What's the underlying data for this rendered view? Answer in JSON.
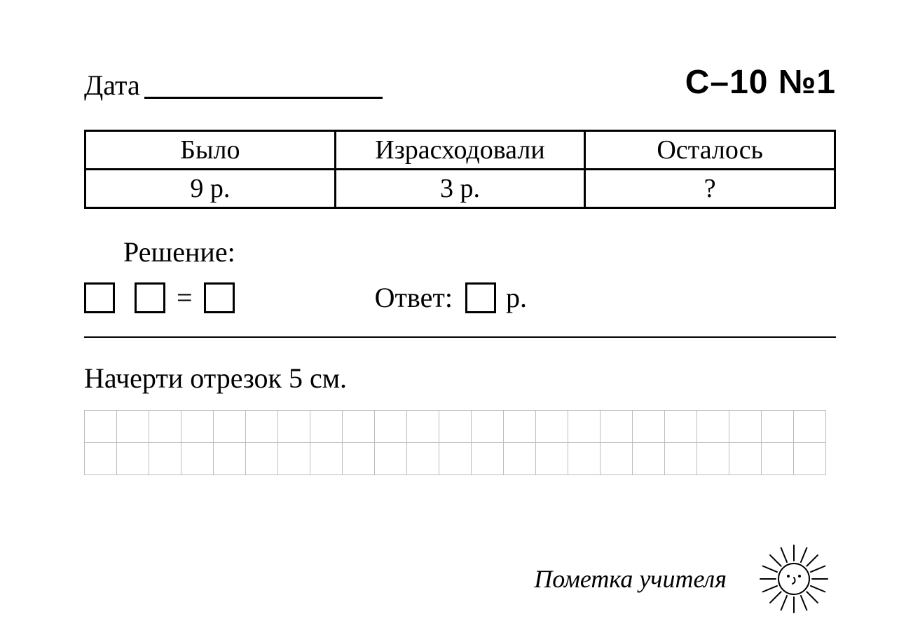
{
  "header": {
    "date_label": "Дата",
    "worksheet_id": "С–10  №1"
  },
  "table": {
    "columns": [
      "Было",
      "Израсходовали",
      "Осталось"
    ],
    "row": [
      "9 р.",
      "3 р.",
      "?"
    ],
    "border_color": "#000000",
    "font_size": 38
  },
  "solution": {
    "label": "Решение:",
    "equals": "=",
    "answer_label": "Ответ:",
    "answer_unit": "р.",
    "box_size": 44
  },
  "divider_color": "#000000",
  "task2": {
    "label": "Начерти отрезок 5 см.",
    "grid": {
      "cols": 23,
      "rows": 2,
      "cell_size": 46,
      "line_color": "#bdbdbd"
    }
  },
  "footer": {
    "teacher_note": "Пометка учителя"
  },
  "sun_icon": {
    "stroke": "#000000",
    "stroke_width": 2,
    "face_radius": 22,
    "ray_count": 16
  },
  "colors": {
    "background": "#ffffff",
    "text": "#000000"
  }
}
